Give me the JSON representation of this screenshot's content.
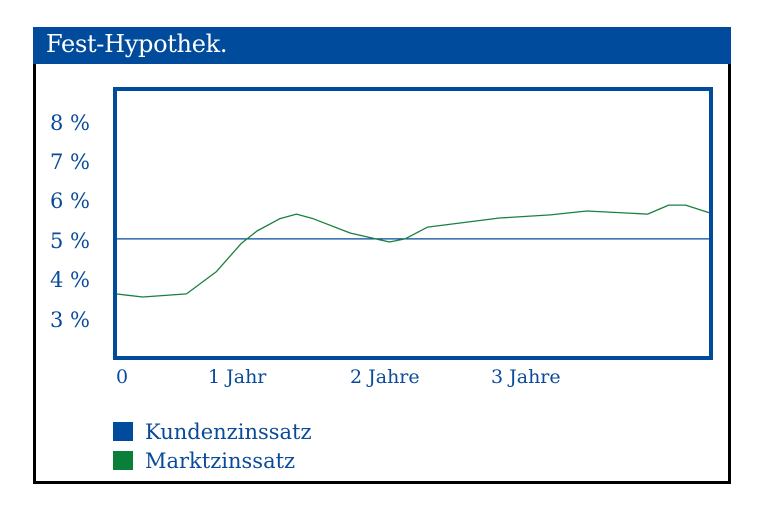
{
  "header": {
    "title": "Fest-Hypothek."
  },
  "colors": {
    "header_bg": "#004b9b",
    "axis_text": "#0a4a9a",
    "plot_border": "#004b9b",
    "kundenzinssatz": "#004b9b",
    "marktzinssatz": "#1a8040"
  },
  "axes": {
    "y_ticks": [
      "8 %",
      "7 %",
      "6 %",
      "5 %",
      "4 %",
      "3 %"
    ],
    "x_ticks": [
      "0",
      "1 Jahr",
      "2 Jahre",
      "3 Jahre"
    ]
  },
  "legend": {
    "items": [
      {
        "label": "Kundenzinssatz",
        "color": "#004b9b"
      },
      {
        "label": "Marktzinssatz",
        "color": "#0a7f3a"
      }
    ]
  },
  "chart_data": {
    "type": "line",
    "title": "Fest-Hypothek.",
    "xlabel": "",
    "ylabel": "",
    "x_unit": "Jahre",
    "y_unit": "%",
    "xlim": [
      0,
      4.25
    ],
    "ylim": [
      2.1,
      8.9
    ],
    "x_tick_values": [
      0,
      1,
      2,
      3
    ],
    "x_tick_labels": [
      "0",
      "1 Jahr",
      "2 Jahre",
      "3 Jahre"
    ],
    "y_tick_values": [
      8,
      7,
      6,
      5,
      4,
      3
    ],
    "y_tick_labels": [
      "8 %",
      "7 %",
      "6 %",
      "5 %",
      "4 %",
      "3 %"
    ],
    "grid": false,
    "legend_position": "bottom-left",
    "series": [
      {
        "name": "Kundenzinssatz",
        "color": "#004b9b",
        "x": [
          0,
          4.25
        ],
        "values": [
          5.08,
          5.08
        ]
      },
      {
        "name": "Marktzinssatz",
        "color": "#1a8040",
        "x": [
          0,
          0.19,
          0.5,
          0.71,
          0.89,
          1.0,
          1.16,
          1.28,
          1.4,
          1.66,
          1.94,
          2.05,
          2.21,
          2.72,
          3.08,
          3.34,
          3.77,
          3.92,
          4.04,
          4.21
        ],
        "values": [
          3.68,
          3.6,
          3.68,
          4.24,
          4.97,
          5.28,
          5.59,
          5.71,
          5.59,
          5.23,
          5.0,
          5.08,
          5.38,
          5.61,
          5.69,
          5.79,
          5.71,
          5.94,
          5.94,
          5.74
        ]
      }
    ]
  }
}
